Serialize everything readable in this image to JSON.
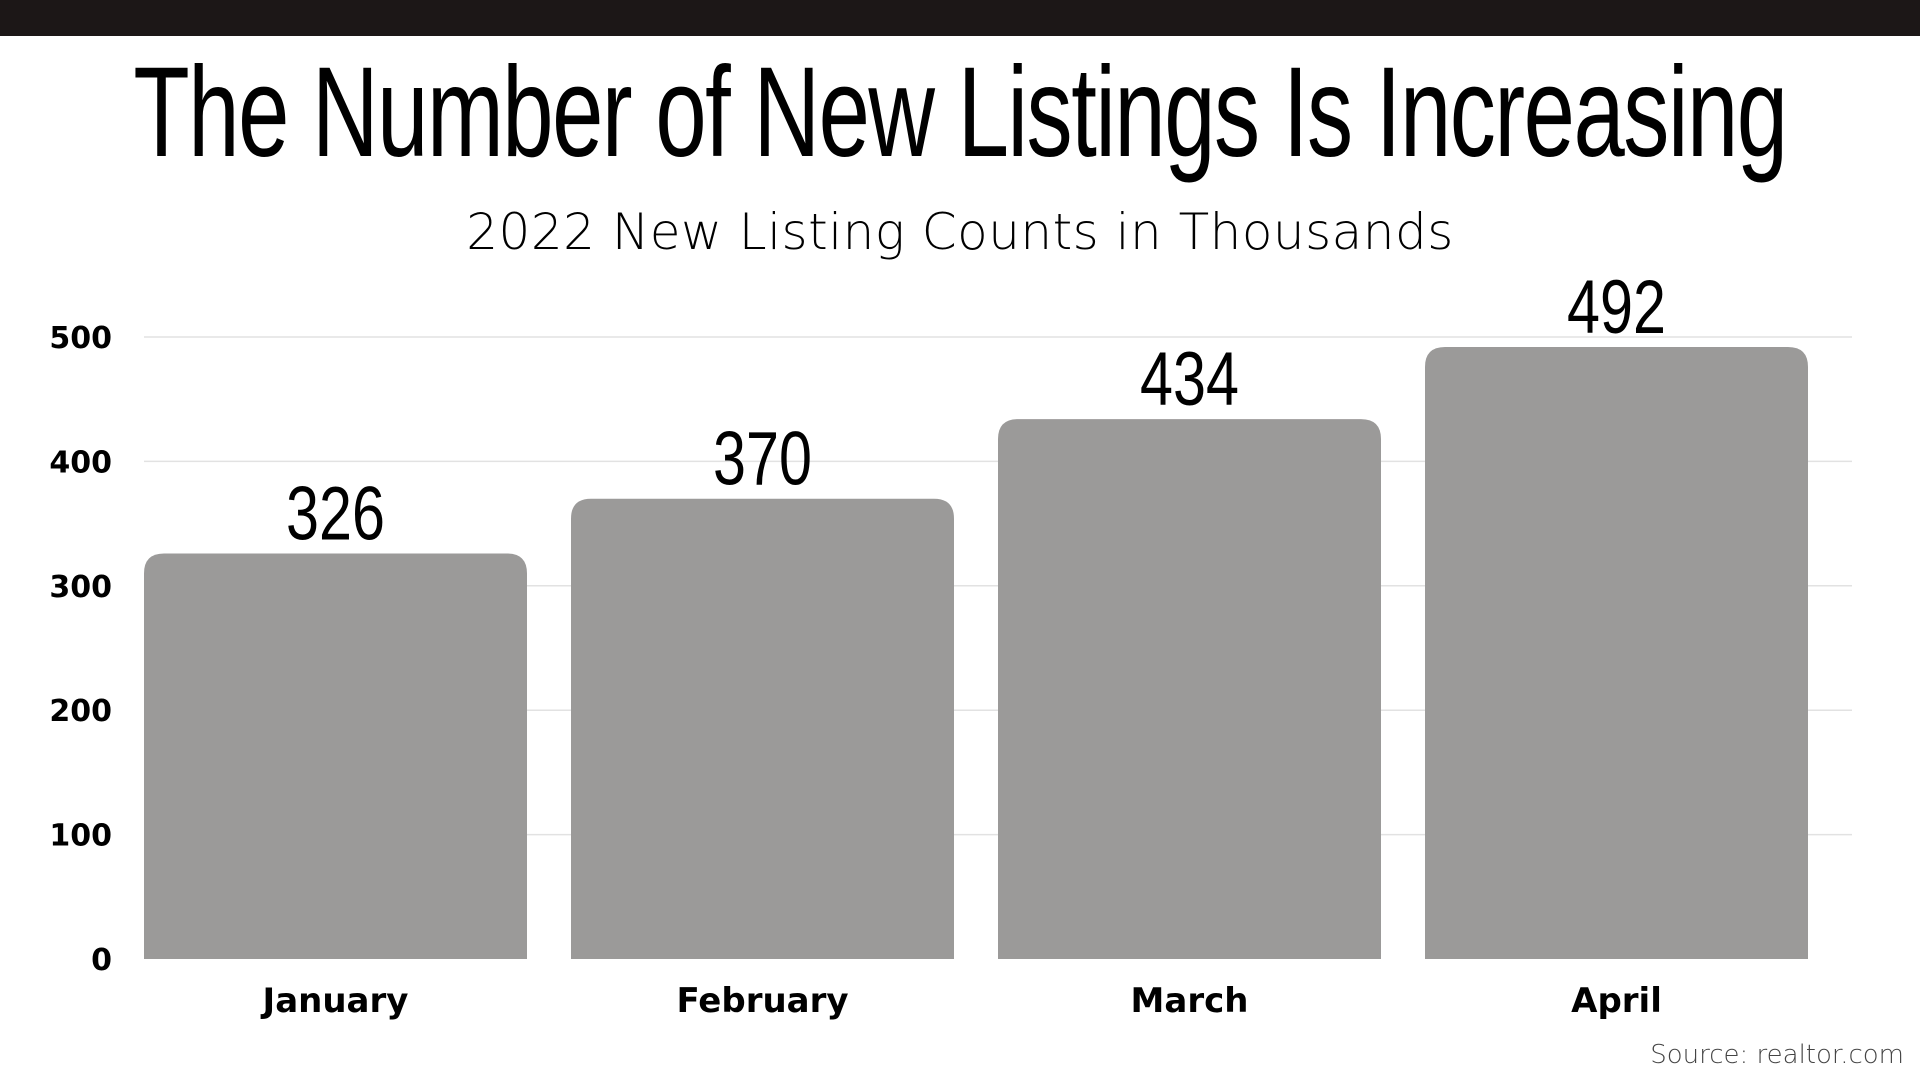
{
  "title": "The Number of New Listings Is Increasing",
  "subtitle": "2022 New Listing Counts in Thousands",
  "source": "Source:  realtor.com",
  "colors": {
    "bar": "#9b9a99",
    "top_bar": "#1c1717",
    "grid": "#e2e2e2",
    "text": "#000000"
  },
  "chart_data": {
    "type": "bar",
    "categories": [
      "January",
      "February",
      "March",
      "April"
    ],
    "values": [
      326,
      370,
      434,
      492
    ],
    "data_labels": [
      "326",
      "370",
      "434",
      "492"
    ],
    "yticks": [
      0,
      100,
      200,
      300,
      400,
      500
    ],
    "ylim": [
      0,
      500
    ],
    "grid": true,
    "legend": "none"
  }
}
